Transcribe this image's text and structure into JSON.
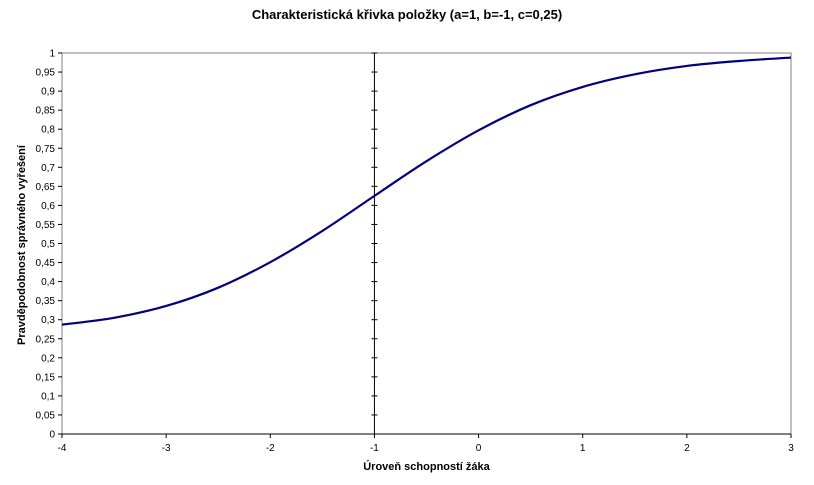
{
  "chart_data": {
    "type": "line",
    "title": "Charakteristická křivka položky (a=1, b=-1, c=0,25)",
    "xlabel": "Úroveň schopností žáka",
    "ylabel": "Pravděpodobnost správného vyřešení",
    "xlim": [
      -4,
      3
    ],
    "ylim": [
      0,
      1
    ],
    "x_ticks": [
      "-4",
      "-3",
      "-2",
      "-1",
      "0",
      "1",
      "2",
      "3"
    ],
    "y_ticks": [
      "0",
      "0,05",
      "0,1",
      "0,15",
      "0,2",
      "0,25",
      "0,3",
      "0,35",
      "0,4",
      "0,45",
      "0,5",
      "0,55",
      "0,6",
      "0,65",
      "0,7",
      "0,75",
      "0,8",
      "0,85",
      "0,9",
      "0,95",
      "1"
    ],
    "grid": false,
    "legend": "none",
    "vertical_reference_line_x": -1,
    "line_color": "#000080",
    "series": [
      {
        "x": [
          -4,
          -3.5,
          -3,
          -2.5,
          -2,
          -1.5,
          -1,
          -0.5,
          0,
          0.5,
          1,
          1.5,
          2,
          2.5,
          3
        ],
        "values": [
          0.287,
          0.305,
          0.336,
          0.384,
          0.451,
          0.533,
          0.625,
          0.716,
          0.797,
          0.863,
          0.911,
          0.944,
          0.966,
          0.979,
          0.988
        ]
      }
    ]
  }
}
